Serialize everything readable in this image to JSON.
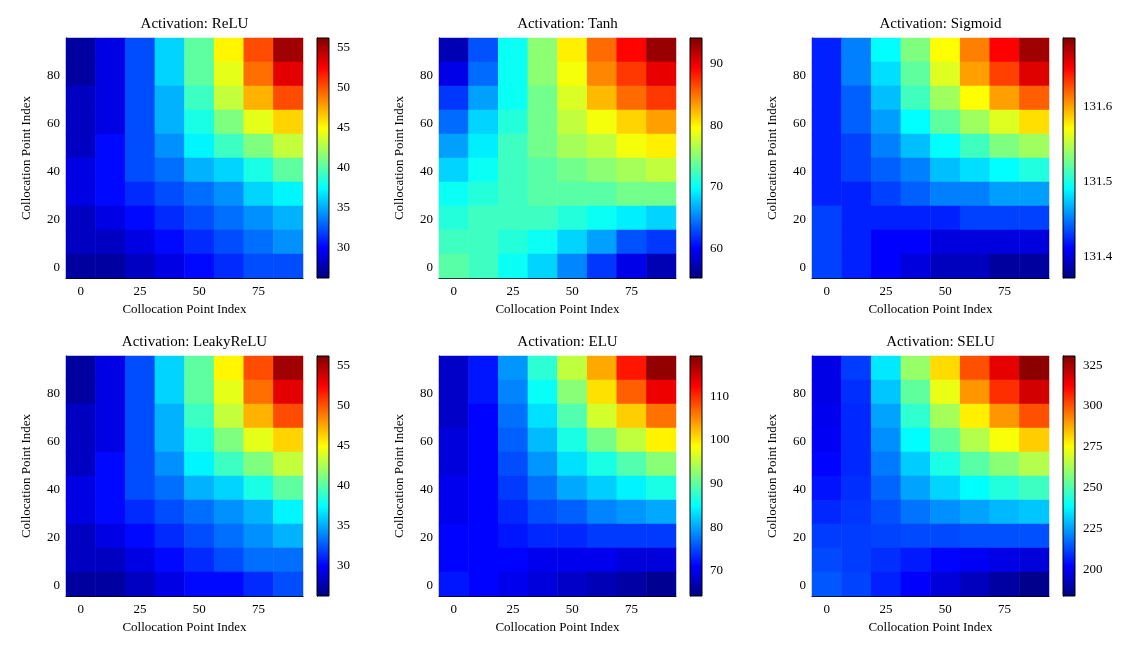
{
  "chart_data": [
    {
      "type": "heatmap",
      "title": "Activation: ReLU",
      "xlabel": "Collocation Point Index",
      "ylabel": "Collocation Point Index",
      "categories": [
        "0",
        null,
        "25",
        null,
        "50",
        null,
        "75",
        null
      ],
      "y_categories": [
        null,
        "80",
        null,
        "60",
        null,
        "40",
        null,
        "20",
        null,
        "0"
      ],
      "clim": [
        26,
        56
      ],
      "cticks": [
        30,
        35,
        40,
        45,
        50,
        55
      ],
      "cells": [
        [
          27,
          29,
          32,
          36,
          40,
          45,
          50,
          55
        ],
        [
          27,
          29,
          32,
          36,
          40,
          44,
          49,
          53
        ],
        [
          28,
          29,
          32,
          35,
          39,
          43,
          47,
          50
        ],
        [
          28,
          29,
          32,
          35,
          38,
          41,
          44,
          46
        ],
        [
          28,
          30,
          32,
          34,
          37,
          39,
          41,
          43
        ],
        [
          29,
          30,
          32,
          33,
          35,
          36,
          38,
          40
        ],
        [
          29,
          30,
          31,
          32,
          33,
          34,
          36,
          37
        ],
        [
          28,
          29,
          30,
          31,
          32,
          33,
          34,
          35
        ],
        [
          28,
          28,
          29,
          30,
          31,
          32,
          33,
          34
        ],
        [
          27,
          27,
          28,
          29,
          30,
          31,
          32,
          32
        ]
      ]
    },
    {
      "type": "heatmap",
      "title": "Activation: Tanh",
      "xlabel": "Collocation Point Index",
      "ylabel": "Collocation Point Index",
      "categories": [
        "0",
        null,
        "25",
        null,
        "50",
        null,
        "75",
        null
      ],
      "y_categories": [
        null,
        "80",
        null,
        "60",
        null,
        "40",
        null,
        "20",
        null,
        "0"
      ],
      "clim": [
        55,
        94
      ],
      "cticks": [
        60,
        70,
        80,
        90
      ],
      "cells": [
        [
          57,
          63,
          70,
          75,
          80,
          85,
          89,
          93
        ],
        [
          59,
          64,
          70,
          75,
          79,
          84,
          87,
          90
        ],
        [
          62,
          66,
          70,
          74,
          78,
          82,
          85,
          87
        ],
        [
          64,
          68,
          71,
          74,
          77,
          79,
          81,
          83
        ],
        [
          66,
          69,
          72,
          74,
          76,
          77,
          79,
          80
        ],
        [
          68,
          70,
          72,
          73,
          74,
          75,
          76,
          77
        ],
        [
          70,
          71,
          72,
          73,
          73,
          73,
          74,
          74
        ],
        [
          71,
          72,
          72,
          72,
          71,
          70,
          69,
          68
        ],
        [
          72,
          72,
          71,
          70,
          68,
          66,
          63,
          62
        ],
        [
          73,
          72,
          70,
          68,
          65,
          62,
          59,
          57
        ]
      ]
    },
    {
      "type": "heatmap",
      "title": "Activation: Sigmoid",
      "xlabel": "Collocation Point Index",
      "ylabel": "Collocation Point Index",
      "categories": [
        "0",
        null,
        "25",
        null,
        "50",
        null,
        "75",
        null
      ],
      "y_categories": [
        null,
        "80",
        null,
        "60",
        null,
        "40",
        null,
        "20",
        null,
        "0"
      ],
      "clim": [
        131.37,
        131.69
      ],
      "cticks": [
        131.4,
        131.5,
        131.6
      ],
      "cells": [
        [
          131.42,
          131.45,
          131.49,
          131.53,
          131.57,
          131.61,
          131.65,
          131.68
        ],
        [
          131.42,
          131.45,
          131.48,
          131.52,
          131.56,
          131.6,
          131.63,
          131.66
        ],
        [
          131.42,
          131.44,
          131.47,
          131.51,
          131.54,
          131.57,
          131.6,
          131.62
        ],
        [
          131.42,
          131.44,
          131.46,
          131.49,
          131.52,
          131.54,
          131.56,
          131.58
        ],
        [
          131.42,
          131.43,
          131.45,
          131.47,
          131.49,
          131.51,
          131.53,
          131.54
        ],
        [
          131.42,
          131.43,
          131.44,
          131.45,
          131.47,
          131.48,
          131.49,
          131.5
        ],
        [
          131.42,
          131.42,
          131.43,
          131.44,
          131.45,
          131.45,
          131.46,
          131.46
        ],
        [
          131.43,
          131.42,
          131.42,
          131.42,
          131.42,
          131.43,
          131.43,
          131.43
        ],
        [
          131.43,
          131.42,
          131.41,
          131.41,
          131.4,
          131.4,
          131.4,
          131.4
        ],
        [
          131.43,
          131.42,
          131.41,
          131.4,
          131.39,
          131.39,
          131.38,
          131.38
        ]
      ]
    },
    {
      "type": "heatmap",
      "title": "Activation: LeakyReLU",
      "xlabel": "Collocation Point Index",
      "ylabel": "Collocation Point Index",
      "categories": [
        "0",
        null,
        "25",
        null,
        "50",
        null,
        "75",
        null
      ],
      "y_categories": [
        null,
        "80",
        null,
        "60",
        null,
        "40",
        null,
        "20",
        null,
        "0"
      ],
      "clim": [
        26,
        56
      ],
      "cticks": [
        30,
        35,
        40,
        45,
        50,
        55
      ],
      "cells": [
        [
          27,
          29,
          32,
          36,
          40,
          45,
          50,
          55
        ],
        [
          27,
          29,
          32,
          36,
          40,
          44,
          49,
          53
        ],
        [
          28,
          29,
          32,
          35,
          39,
          43,
          47,
          50
        ],
        [
          28,
          29,
          32,
          35,
          38,
          41,
          44,
          46
        ],
        [
          28,
          30,
          32,
          34,
          37,
          39,
          41,
          43
        ],
        [
          29,
          30,
          32,
          33,
          35,
          36,
          38,
          40
        ],
        [
          29,
          30,
          31,
          32,
          33,
          34,
          35,
          37
        ],
        [
          28,
          29,
          30,
          31,
          32,
          33,
          34,
          35
        ],
        [
          28,
          28,
          29,
          30,
          31,
          32,
          33,
          33
        ],
        [
          27,
          27,
          28,
          29,
          30,
          30,
          31,
          32
        ]
      ]
    },
    {
      "type": "heatmap",
      "title": "Activation: ELU",
      "xlabel": "Collocation Point Index",
      "ylabel": "Collocation Point Index",
      "categories": [
        "0",
        null,
        "25",
        null,
        "50",
        null,
        "75",
        null
      ],
      "y_categories": [
        null,
        "80",
        null,
        "60",
        null,
        "40",
        null,
        "20",
        null,
        "0"
      ],
      "clim": [
        64,
        119
      ],
      "cticks": [
        70,
        80,
        90,
        100,
        110
      ],
      "cells": [
        [
          68,
          72,
          79,
          87,
          95,
          103,
          111,
          118
        ],
        [
          68,
          72,
          78,
          85,
          92,
          100,
          107,
          113
        ],
        [
          68,
          71,
          77,
          83,
          89,
          96,
          101,
          106
        ],
        [
          69,
          71,
          76,
          81,
          86,
          91,
          95,
          99
        ],
        [
          69,
          71,
          75,
          79,
          83,
          86,
          89,
          92
        ],
        [
          70,
          71,
          74,
          77,
          80,
          82,
          84,
          86
        ],
        [
          70,
          71,
          73,
          75,
          76,
          78,
          79,
          80
        ],
        [
          71,
          71,
          72,
          73,
          73,
          74,
          74,
          74
        ],
        [
          71,
          71,
          71,
          70,
          70,
          70,
          69,
          69
        ],
        [
          72,
          71,
          70,
          69,
          68,
          67,
          66,
          65
        ]
      ]
    },
    {
      "type": "heatmap",
      "title": "Activation: SELU",
      "xlabel": "Collocation Point Index",
      "ylabel": "Collocation Point Index",
      "categories": [
        "0",
        null,
        "25",
        null,
        "50",
        null,
        "75",
        null
      ],
      "y_categories": [
        null,
        "80",
        null,
        "60",
        null,
        "40",
        null,
        "20",
        null,
        "0"
      ],
      "clim": [
        183,
        330
      ],
      "cticks": [
        200,
        225,
        250,
        275,
        300,
        325
      ],
      "cells": [
        [
          198,
          210,
          235,
          260,
          280,
          300,
          315,
          328
        ],
        [
          198,
          208,
          230,
          252,
          272,
          290,
          305,
          318
        ],
        [
          199,
          207,
          225,
          245,
          262,
          277,
          290,
          300
        ],
        [
          200,
          207,
          222,
          238,
          252,
          264,
          274,
          282
        ],
        [
          202,
          207,
          219,
          231,
          242,
          251,
          258,
          264
        ],
        [
          204,
          208,
          216,
          225,
          232,
          238,
          243,
          247
        ],
        [
          207,
          209,
          213,
          218,
          222,
          225,
          228,
          230
        ],
        [
          210,
          210,
          211,
          212,
          212,
          213,
          213,
          213
        ],
        [
          212,
          210,
          208,
          205,
          202,
          200,
          198,
          196
        ],
        [
          214,
          211,
          206,
          201,
          196,
          192,
          188,
          185
        ]
      ]
    }
  ]
}
